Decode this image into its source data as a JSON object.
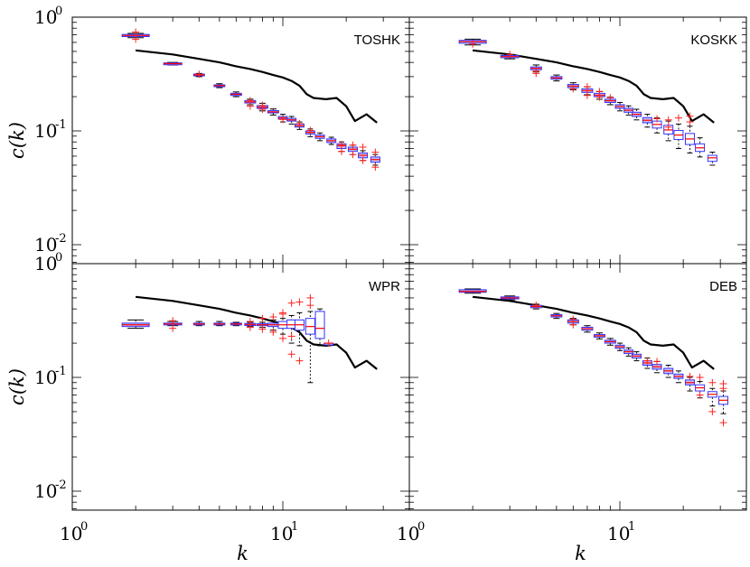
{
  "chart_data": {
    "type": "boxplot",
    "scale": "log-log",
    "xlabel": "k",
    "ylabel": "c(k)",
    "xlim": [
      1,
      40
    ],
    "ylim": [
      0.007,
      1
    ],
    "x_tick_labels": {
      "base": "10",
      "exponents": [
        "0",
        "1"
      ]
    },
    "y_tick_labels": {
      "base": "10",
      "exponents": [
        "0",
        "-1",
        "-2"
      ]
    },
    "reference_line": {
      "x": [
        2,
        3,
        4,
        5,
        6,
        7,
        8,
        9,
        10,
        11,
        12,
        13,
        14,
        16,
        18,
        20,
        22,
        25,
        28
      ],
      "y": [
        0.51,
        0.47,
        0.43,
        0.4,
        0.37,
        0.35,
        0.33,
        0.31,
        0.295,
        0.275,
        0.25,
        0.21,
        0.195,
        0.19,
        0.195,
        0.165,
        0.122,
        0.14,
        0.118
      ]
    },
    "panels": [
      {
        "title": "TOSHK",
        "position": "top-left",
        "boxes": [
          {
            "k": 2,
            "q1": 0.675,
            "median": 0.69,
            "q3": 0.705,
            "low": 0.66,
            "high": 0.72,
            "outliers": [
              0.64,
              0.74
            ]
          },
          {
            "k": 3,
            "q1": 0.385,
            "median": 0.39,
            "q3": 0.396,
            "low": 0.38,
            "high": 0.4,
            "outliers": []
          },
          {
            "k": 4,
            "q1": 0.305,
            "median": 0.31,
            "q3": 0.316,
            "low": 0.3,
            "high": 0.32,
            "outliers": [
              0.315
            ]
          },
          {
            "k": 5,
            "q1": 0.246,
            "median": 0.25,
            "q3": 0.254,
            "low": 0.24,
            "high": 0.26,
            "outliers": []
          },
          {
            "k": 6,
            "q1": 0.205,
            "median": 0.21,
            "q3": 0.214,
            "low": 0.2,
            "high": 0.22,
            "outliers": []
          },
          {
            "k": 7,
            "q1": 0.176,
            "median": 0.18,
            "q3": 0.185,
            "low": 0.17,
            "high": 0.19,
            "outliers": [
              0.165,
              0.185
            ]
          },
          {
            "k": 8,
            "q1": 0.158,
            "median": 0.162,
            "q3": 0.167,
            "low": 0.15,
            "high": 0.175,
            "outliers": [
              0.168,
              0.155
            ]
          },
          {
            "k": 9,
            "q1": 0.144,
            "median": 0.147,
            "q3": 0.151,
            "low": 0.138,
            "high": 0.156,
            "outliers": []
          },
          {
            "k": 10,
            "q1": 0.127,
            "median": 0.13,
            "q3": 0.134,
            "low": 0.12,
            "high": 0.14,
            "outliers": [
              0.126
            ]
          },
          {
            "k": 11,
            "q1": 0.122,
            "median": 0.125,
            "q3": 0.129,
            "low": 0.115,
            "high": 0.134,
            "outliers": []
          },
          {
            "k": 12,
            "q1": 0.108,
            "median": 0.111,
            "q3": 0.115,
            "low": 0.103,
            "high": 0.12,
            "outliers": [
              0.116
            ]
          },
          {
            "k": 13.5,
            "q1": 0.094,
            "median": 0.097,
            "q3": 0.1,
            "low": 0.089,
            "high": 0.104,
            "outliers": [
              0.101
            ]
          },
          {
            "k": 15,
            "q1": 0.086,
            "median": 0.089,
            "q3": 0.092,
            "low": 0.082,
            "high": 0.096,
            "outliers": []
          },
          {
            "k": 17,
            "q1": 0.079,
            "median": 0.082,
            "q3": 0.085,
            "low": 0.076,
            "high": 0.088,
            "outliers": []
          },
          {
            "k": 19,
            "q1": 0.07,
            "median": 0.074,
            "q3": 0.077,
            "low": 0.066,
            "high": 0.08,
            "outliers": [
              0.076,
              0.066
            ]
          },
          {
            "k": 21.5,
            "q1": 0.066,
            "median": 0.069,
            "q3": 0.072,
            "low": 0.062,
            "high": 0.075,
            "outliers": [
              0.075,
              0.062
            ]
          },
          {
            "k": 24,
            "q1": 0.058,
            "median": 0.061,
            "q3": 0.064,
            "low": 0.055,
            "high": 0.067,
            "outliers": [
              0.072,
              0.055
            ]
          },
          {
            "k": 27.5,
            "q1": 0.053,
            "median": 0.056,
            "q3": 0.059,
            "low": 0.05,
            "high": 0.062,
            "outliers": [
              0.065,
              0.048
            ]
          }
        ]
      },
      {
        "title": "KOSKK",
        "position": "top-right",
        "boxes": [
          {
            "k": 2,
            "q1": 0.59,
            "median": 0.61,
            "q3": 0.625,
            "low": 0.57,
            "high": 0.64,
            "outliers": [
              0.58
            ]
          },
          {
            "k": 3,
            "q1": 0.44,
            "median": 0.45,
            "q3": 0.46,
            "low": 0.43,
            "high": 0.47,
            "outliers": [
              0.47
            ]
          },
          {
            "k": 4,
            "q1": 0.345,
            "median": 0.355,
            "q3": 0.365,
            "low": 0.33,
            "high": 0.38,
            "outliers": [
              0.335,
              0.32
            ]
          },
          {
            "k": 5,
            "q1": 0.285,
            "median": 0.292,
            "q3": 0.3,
            "low": 0.275,
            "high": 0.31,
            "outliers": []
          },
          {
            "k": 6,
            "q1": 0.24,
            "median": 0.248,
            "q3": 0.256,
            "low": 0.23,
            "high": 0.265,
            "outliers": [
              0.235
            ]
          },
          {
            "k": 7,
            "q1": 0.218,
            "median": 0.226,
            "q3": 0.234,
            "low": 0.208,
            "high": 0.244,
            "outliers": [
              0.245,
              0.225,
              0.205
            ]
          },
          {
            "k": 8,
            "q1": 0.2,
            "median": 0.206,
            "q3": 0.214,
            "low": 0.19,
            "high": 0.222,
            "outliers": [
              0.222,
              0.198
            ]
          },
          {
            "k": 9,
            "q1": 0.178,
            "median": 0.184,
            "q3": 0.19,
            "low": 0.17,
            "high": 0.198,
            "outliers": [
              0.196
            ]
          },
          {
            "k": 10,
            "q1": 0.158,
            "median": 0.164,
            "q3": 0.17,
            "low": 0.15,
            "high": 0.178,
            "outliers": []
          },
          {
            "k": 11,
            "q1": 0.146,
            "median": 0.152,
            "q3": 0.158,
            "low": 0.138,
            "high": 0.166,
            "outliers": []
          },
          {
            "k": 12,
            "q1": 0.134,
            "median": 0.14,
            "q3": 0.146,
            "low": 0.125,
            "high": 0.155,
            "outliers": []
          },
          {
            "k": 13.5,
            "q1": 0.118,
            "median": 0.124,
            "q3": 0.131,
            "low": 0.108,
            "high": 0.14,
            "outliers": []
          },
          {
            "k": 15,
            "q1": 0.106,
            "median": 0.114,
            "q3": 0.122,
            "low": 0.096,
            "high": 0.13,
            "outliers": [
              0.128
            ]
          },
          {
            "k": 17,
            "q1": 0.094,
            "median": 0.102,
            "q3": 0.112,
            "low": 0.082,
            "high": 0.122,
            "outliers": [
              0.125,
              0.108
            ]
          },
          {
            "k": 19,
            "q1": 0.084,
            "median": 0.092,
            "q3": 0.101,
            "low": 0.07,
            "high": 0.115,
            "outliers": [
              0.13
            ]
          },
          {
            "k": 21.5,
            "q1": 0.076,
            "median": 0.085,
            "q3": 0.095,
            "low": 0.064,
            "high": 0.11,
            "outliers": [
              0.135,
              0.12
            ]
          },
          {
            "k": 24,
            "q1": 0.066,
            "median": 0.071,
            "q3": 0.077,
            "low": 0.059,
            "high": 0.087,
            "outliers": []
          },
          {
            "k": 27.5,
            "q1": 0.054,
            "median": 0.058,
            "q3": 0.061,
            "low": 0.05,
            "high": 0.065,
            "outliers": []
          }
        ]
      },
      {
        "title": "WPR",
        "position": "bottom-left",
        "boxes": [
          {
            "k": 2,
            "q1": 0.28,
            "median": 0.29,
            "q3": 0.3,
            "low": 0.27,
            "high": 0.32,
            "outliers": []
          },
          {
            "k": 3,
            "q1": 0.29,
            "median": 0.295,
            "q3": 0.3,
            "low": 0.285,
            "high": 0.31,
            "outliers": [
              0.315,
              0.27
            ]
          },
          {
            "k": 4,
            "q1": 0.29,
            "median": 0.295,
            "q3": 0.3,
            "low": 0.285,
            "high": 0.31,
            "outliers": []
          },
          {
            "k": 5,
            "q1": 0.29,
            "median": 0.295,
            "q3": 0.3,
            "low": 0.285,
            "high": 0.31,
            "outliers": []
          },
          {
            "k": 6,
            "q1": 0.29,
            "median": 0.295,
            "q3": 0.3,
            "low": 0.285,
            "high": 0.305,
            "outliers": []
          },
          {
            "k": 7,
            "q1": 0.286,
            "median": 0.292,
            "q3": 0.298,
            "low": 0.28,
            "high": 0.305,
            "outliers": [
              0.31,
              0.275
            ]
          },
          {
            "k": 8,
            "q1": 0.285,
            "median": 0.29,
            "q3": 0.296,
            "low": 0.275,
            "high": 0.305,
            "outliers": [
              0.33,
              0.265
            ]
          },
          {
            "k": 9,
            "q1": 0.28,
            "median": 0.29,
            "q3": 0.3,
            "low": 0.26,
            "high": 0.32,
            "outliers": [
              0.34,
              0.25
            ]
          },
          {
            "k": 10,
            "q1": 0.27,
            "median": 0.29,
            "q3": 0.31,
            "low": 0.24,
            "high": 0.33,
            "outliers": [
              0.37,
              0.22,
              0.36
            ]
          },
          {
            "k": 11,
            "q1": 0.27,
            "median": 0.29,
            "q3": 0.32,
            "low": 0.2,
            "high": 0.35,
            "outliers": [
              0.45,
              0.16,
              0.23
            ]
          },
          {
            "k": 12,
            "q1": 0.26,
            "median": 0.29,
            "q3": 0.32,
            "low": 0.19,
            "high": 0.37,
            "outliers": [
              0.46,
              0.14
            ]
          },
          {
            "k": 13.5,
            "q1": 0.24,
            "median": 0.28,
            "q3": 0.33,
            "low": 0.09,
            "high": 0.38,
            "outliers": [
              0.5,
              0.43
            ]
          },
          {
            "k": 15,
            "q1": 0.22,
            "median": 0.27,
            "q3": 0.38,
            "low": 0.19,
            "high": 0.4,
            "outliers": []
          },
          {
            "k": 16.5,
            "q1": 0.2,
            "median": 0.2,
            "q3": 0.2,
            "low": 0.2,
            "high": 0.2,
            "outliers": [
              0.2
            ]
          }
        ]
      },
      {
        "title": "DEB",
        "position": "bottom-right",
        "boxes": [
          {
            "k": 2,
            "q1": 0.56,
            "median": 0.57,
            "q3": 0.59,
            "low": 0.55,
            "high": 0.6,
            "outliers": []
          },
          {
            "k": 3,
            "q1": 0.49,
            "median": 0.5,
            "q3": 0.51,
            "low": 0.48,
            "high": 0.52,
            "outliers": []
          },
          {
            "k": 4,
            "q1": 0.41,
            "median": 0.42,
            "q3": 0.43,
            "low": 0.4,
            "high": 0.44,
            "outliers": [
              0.43
            ]
          },
          {
            "k": 5,
            "q1": 0.34,
            "median": 0.348,
            "q3": 0.356,
            "low": 0.33,
            "high": 0.365,
            "outliers": []
          },
          {
            "k": 6,
            "q1": 0.3,
            "median": 0.31,
            "q3": 0.32,
            "low": 0.29,
            "high": 0.33,
            "outliers": [
              0.325,
              0.29
            ]
          },
          {
            "k": 7,
            "q1": 0.26,
            "median": 0.268,
            "q3": 0.276,
            "low": 0.25,
            "high": 0.285,
            "outliers": []
          },
          {
            "k": 8,
            "q1": 0.226,
            "median": 0.232,
            "q3": 0.238,
            "low": 0.218,
            "high": 0.246,
            "outliers": []
          },
          {
            "k": 9,
            "q1": 0.2,
            "median": 0.206,
            "q3": 0.212,
            "low": 0.192,
            "high": 0.22,
            "outliers": []
          },
          {
            "k": 10,
            "q1": 0.18,
            "median": 0.186,
            "q3": 0.192,
            "low": 0.172,
            "high": 0.2,
            "outliers": []
          },
          {
            "k": 11,
            "q1": 0.162,
            "median": 0.168,
            "q3": 0.174,
            "low": 0.154,
            "high": 0.182,
            "outliers": []
          },
          {
            "k": 12,
            "q1": 0.148,
            "median": 0.154,
            "q3": 0.16,
            "low": 0.14,
            "high": 0.168,
            "outliers": []
          },
          {
            "k": 13.5,
            "q1": 0.128,
            "median": 0.134,
            "q3": 0.14,
            "low": 0.12,
            "high": 0.148,
            "outliers": [
              0.14
            ]
          },
          {
            "k": 15,
            "q1": 0.118,
            "median": 0.124,
            "q3": 0.13,
            "low": 0.11,
            "high": 0.138,
            "outliers": [
              0.138
            ]
          },
          {
            "k": 17,
            "q1": 0.108,
            "median": 0.114,
            "q3": 0.12,
            "low": 0.1,
            "high": 0.128,
            "outliers": []
          },
          {
            "k": 19,
            "q1": 0.098,
            "median": 0.102,
            "q3": 0.107,
            "low": 0.09,
            "high": 0.114,
            "outliers": []
          },
          {
            "k": 21.5,
            "q1": 0.086,
            "median": 0.09,
            "q3": 0.095,
            "low": 0.076,
            "high": 0.1,
            "outliers": [
              0.102
            ]
          },
          {
            "k": 24,
            "q1": 0.076,
            "median": 0.081,
            "q3": 0.086,
            "low": 0.066,
            "high": 0.092,
            "outliers": [
              0.1,
              0.07
            ]
          },
          {
            "k": 27.5,
            "q1": 0.067,
            "median": 0.071,
            "q3": 0.075,
            "low": 0.056,
            "high": 0.08,
            "outliers": [
              0.09,
              0.05
            ]
          },
          {
            "k": 31,
            "q1": 0.058,
            "median": 0.063,
            "q3": 0.068,
            "low": 0.048,
            "high": 0.076,
            "outliers": [
              0.088,
              0.08,
              0.04
            ]
          }
        ]
      }
    ]
  },
  "colors": {
    "box_edge": "#3333ff",
    "box_fill_flat": "#c8c0ee",
    "median": "#ff0000",
    "outlier": "#ff2222",
    "reference_line": "#000000",
    "axes": "#000000"
  }
}
